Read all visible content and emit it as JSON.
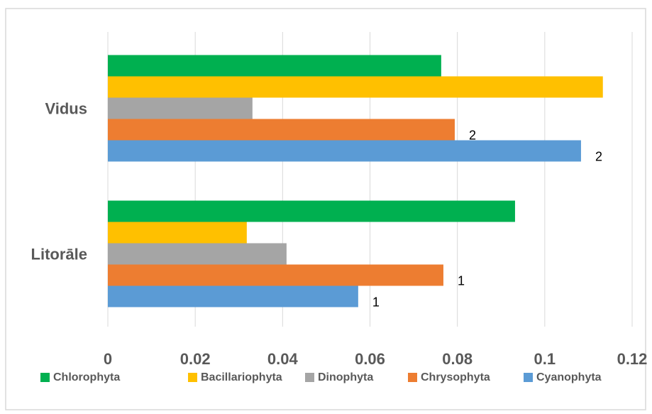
{
  "chart_data": {
    "type": "bar",
    "orientation": "horizontal",
    "categories": [
      "Litorāle",
      "Vidus"
    ],
    "series": [
      {
        "name": "Chlorophyta",
        "color": "#00b050",
        "values": [
          0.0932,
          0.0763
        ]
      },
      {
        "name": "Bacillariophyta",
        "color": "#ffc000",
        "values": [
          0.0318,
          0.1133
        ]
      },
      {
        "name": "Dinophyta",
        "color": "#a5a5a5",
        "values": [
          0.0409,
          0.0331
        ]
      },
      {
        "name": "Chrysophyta",
        "color": "#ed7d31",
        "values": [
          0.0768,
          0.0794
        ],
        "labels": [
          "1",
          "2"
        ]
      },
      {
        "name": "Cyanophyta",
        "color": "#5b9bd5",
        "values": [
          0.0573,
          0.1083
        ],
        "labels": [
          "1",
          "2"
        ]
      }
    ],
    "xlim": [
      0,
      0.12
    ],
    "xticks": [
      0,
      0.02,
      0.04,
      0.06,
      0.08,
      0.1,
      0.12
    ],
    "grid": true,
    "legend": "bottom"
  }
}
